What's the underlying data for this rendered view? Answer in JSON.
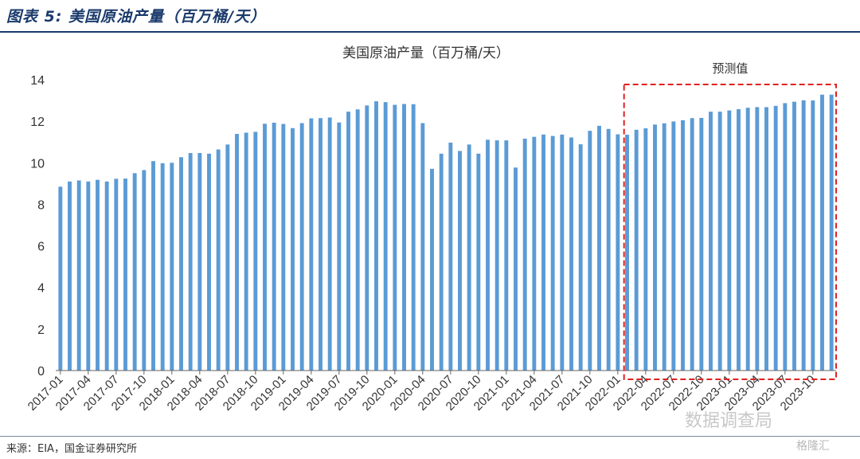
{
  "figure_title": "图表 5:  美国原油产量（百万桶/天）",
  "source_text": "来源：EIA，国金证券研究所",
  "watermark_text": "数据调查局",
  "watermark_logo_text": "格隆汇",
  "colors": {
    "bar": "#5b9bd5",
    "forecast_box": "#e02020",
    "title": "#1a3a6b",
    "axis": "#333333"
  },
  "chart_data": {
    "type": "bar",
    "title": "美国原油产量（百万桶/天）",
    "xlabel": "",
    "ylabel": "",
    "ylim": [
      0,
      14
    ],
    "yticks": [
      0,
      2,
      4,
      6,
      8,
      10,
      12,
      14
    ],
    "grid": false,
    "legend": "none",
    "annotation": "预测值",
    "forecast_start": "2022-02",
    "tick_labels": [
      "2017-01",
      "2017-04",
      "2017-07",
      "2017-10",
      "2018-01",
      "2018-04",
      "2018-07",
      "2018-10",
      "2019-01",
      "2019-04",
      "2019-07",
      "2019-10",
      "2020-01",
      "2020-04",
      "2020-07",
      "2020-10",
      "2021-01",
      "2021-04",
      "2021-07",
      "2021-10",
      "2022-01",
      "2022-04",
      "2022-07",
      "2022-10",
      "2023-01",
      "2023-04",
      "2023-07",
      "2023-10"
    ],
    "categories": [
      "2017-01",
      "2017-02",
      "2017-03",
      "2017-04",
      "2017-05",
      "2017-06",
      "2017-07",
      "2017-08",
      "2017-09",
      "2017-10",
      "2017-11",
      "2017-12",
      "2018-01",
      "2018-02",
      "2018-03",
      "2018-04",
      "2018-05",
      "2018-06",
      "2018-07",
      "2018-08",
      "2018-09",
      "2018-10",
      "2018-11",
      "2018-12",
      "2019-01",
      "2019-02",
      "2019-03",
      "2019-04",
      "2019-05",
      "2019-06",
      "2019-07",
      "2019-08",
      "2019-09",
      "2019-10",
      "2019-11",
      "2019-12",
      "2020-01",
      "2020-02",
      "2020-03",
      "2020-04",
      "2020-05",
      "2020-06",
      "2020-07",
      "2020-08",
      "2020-09",
      "2020-10",
      "2020-11",
      "2020-12",
      "2021-01",
      "2021-02",
      "2021-03",
      "2021-04",
      "2021-05",
      "2021-06",
      "2021-07",
      "2021-08",
      "2021-09",
      "2021-10",
      "2021-11",
      "2021-12",
      "2022-01",
      "2022-02",
      "2022-03",
      "2022-04",
      "2022-05",
      "2022-06",
      "2022-07",
      "2022-08",
      "2022-09",
      "2022-10",
      "2022-11",
      "2022-12",
      "2023-01",
      "2023-02",
      "2023-03",
      "2023-04",
      "2023-05",
      "2023-06",
      "2023-07",
      "2023-08",
      "2023-09",
      "2023-10",
      "2023-11",
      "2023-12"
    ],
    "values": [
      8.85,
      9.1,
      9.15,
      9.1,
      9.18,
      9.1,
      9.23,
      9.24,
      9.5,
      9.65,
      10.08,
      9.98,
      10.0,
      10.27,
      10.47,
      10.47,
      10.44,
      10.64,
      10.88,
      11.39,
      11.45,
      11.49,
      11.88,
      11.93,
      11.87,
      11.67,
      11.91,
      12.14,
      12.15,
      12.18,
      11.94,
      12.46,
      12.57,
      12.76,
      12.96,
      12.92,
      12.79,
      12.83,
      12.82,
      11.91,
      9.71,
      10.44,
      10.97,
      10.57,
      10.88,
      10.44,
      11.11,
      11.08,
      11.08,
      9.77,
      11.16,
      11.25,
      11.36,
      11.29,
      11.36,
      11.22,
      10.89,
      11.54,
      11.78,
      11.63,
      11.37,
      11.35,
      11.59,
      11.66,
      11.84,
      11.9,
      11.99,
      12.05,
      12.15,
      12.16,
      12.46,
      12.46,
      12.52,
      12.58,
      12.65,
      12.68,
      12.68,
      12.74,
      12.87,
      12.94,
      13.01,
      13.0,
      13.28,
      13.28
    ]
  }
}
